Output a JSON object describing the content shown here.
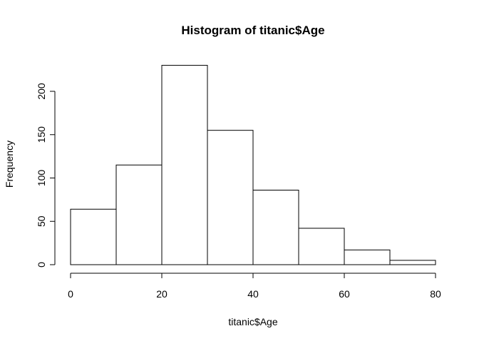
{
  "chart_data": {
    "type": "bar",
    "title": "Histogram of titanic$Age",
    "xlabel": "titanic$Age",
    "ylabel": "Frequency",
    "bins": [
      {
        "start": 0,
        "end": 10,
        "count": 64
      },
      {
        "start": 10,
        "end": 20,
        "count": 115
      },
      {
        "start": 20,
        "end": 30,
        "count": 230
      },
      {
        "start": 30,
        "end": 40,
        "count": 155
      },
      {
        "start": 40,
        "end": 50,
        "count": 86
      },
      {
        "start": 50,
        "end": 60,
        "count": 42
      },
      {
        "start": 60,
        "end": 70,
        "count": 17
      },
      {
        "start": 70,
        "end": 80,
        "count": 5
      }
    ],
    "categories": [
      "0-10",
      "10-20",
      "20-30",
      "30-40",
      "40-50",
      "50-60",
      "60-70",
      "70-80"
    ],
    "values": [
      64,
      115,
      230,
      155,
      86,
      42,
      17,
      5
    ],
    "xlim": [
      0,
      80
    ],
    "ylim": [
      0,
      230
    ],
    "x_ticks": [
      "0",
      "20",
      "40",
      "60",
      "80"
    ],
    "y_ticks": [
      "0",
      "50",
      "100",
      "150",
      "200"
    ],
    "grid": false,
    "bar_fill": "#ffffff",
    "bar_stroke": "#000000"
  }
}
